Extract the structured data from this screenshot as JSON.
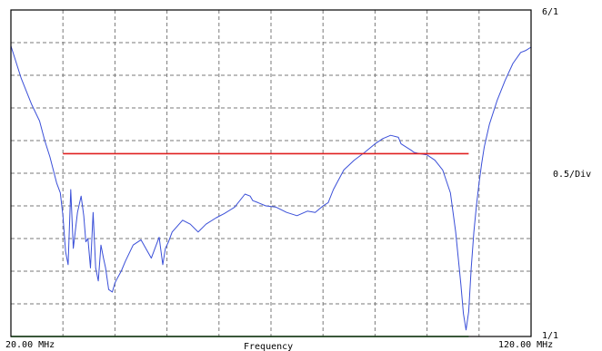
{
  "chart_data": {
    "type": "line",
    "title": "",
    "xlabel": "Frequency",
    "x_tick_labels": {
      "min": "20.00 MHz",
      "max": "120.00 MHz"
    },
    "y_tick_labels": {
      "top": "6/1",
      "bottom": "1/1",
      "scale": "0.5/Div"
    },
    "xlim": [
      20,
      120
    ],
    "ylim": [
      1,
      6
    ],
    "grid": true,
    "grid_divisions": {
      "x": 10,
      "y": 10
    },
    "colors": {
      "trace": "#3a4fd8",
      "limit_upper": "#e02020",
      "limit_lower": "#22bb22",
      "grid": "#7a7a7a",
      "frame": "#000000"
    },
    "series": [
      {
        "color": "#3a4fd8",
        "x": [
          20.0,
          21.0,
          22.0,
          24.0,
          25.5,
          26.5,
          27.5,
          28.8,
          29.5,
          30.0,
          30.5,
          31.0,
          31.5,
          32.0,
          32.8,
          33.5,
          34.0,
          34.4,
          34.8,
          35.3,
          35.8,
          36.3,
          36.8,
          37.3,
          37.8,
          38.2,
          38.8,
          39.5,
          40.0,
          40.5,
          41.2,
          42.0,
          43.5,
          45.0,
          47.0,
          48.5,
          49.2,
          49.7,
          50.3,
          51.0,
          53.0,
          54.5,
          56.0,
          57.5,
          59.5,
          61.0,
          63.0,
          65.0,
          66.0,
          66.5,
          67.5,
          69.0,
          71.0,
          73.0,
          75.0,
          77.0,
          78.5,
          80.0,
          81.0,
          82.0,
          84.0,
          86.0,
          88.0,
          90.0,
          91.5,
          93.0,
          94.5,
          95.0,
          96.0,
          97.0,
          97.5,
          98.5,
          100.0,
          101.5,
          103.0,
          104.5,
          105.5,
          106.5,
          107.0,
          107.5,
          108.0,
          108.5,
          109.0,
          109.5,
          110.0,
          110.5,
          111.0,
          112.0,
          113.5,
          115.0,
          116.5,
          118.0,
          119.0,
          120.0
        ],
        "y": [
          5.45,
          5.2,
          4.95,
          4.55,
          4.3,
          4.0,
          3.75,
          3.35,
          3.2,
          2.85,
          2.3,
          2.1,
          3.25,
          2.35,
          2.9,
          3.15,
          2.85,
          2.45,
          2.5,
          2.05,
          2.9,
          2.05,
          1.85,
          2.4,
          2.2,
          2.05,
          1.72,
          1.68,
          1.82,
          1.9,
          2.0,
          2.15,
          2.4,
          2.48,
          2.2,
          2.52,
          2.1,
          2.35,
          2.45,
          2.6,
          2.78,
          2.72,
          2.6,
          2.72,
          2.82,
          2.88,
          2.98,
          3.18,
          3.15,
          3.08,
          3.05,
          3.0,
          2.98,
          2.9,
          2.85,
          2.92,
          2.9,
          3.0,
          3.05,
          3.25,
          3.55,
          3.7,
          3.82,
          3.95,
          4.03,
          4.08,
          4.05,
          3.95,
          3.9,
          3.85,
          3.82,
          3.8,
          3.78,
          3.7,
          3.55,
          3.2,
          2.6,
          1.8,
          1.35,
          1.1,
          1.38,
          2.05,
          2.6,
          3.0,
          3.35,
          3.65,
          3.9,
          4.25,
          4.62,
          4.92,
          5.18,
          5.35,
          5.38,
          5.43
        ]
      },
      {
        "color": "#e02020",
        "x": [
          30,
          108
        ],
        "y": [
          3.8,
          3.8
        ]
      },
      {
        "color": "#22bb22",
        "x": [
          20,
          108
        ],
        "y": [
          1.0,
          1.0
        ]
      }
    ]
  }
}
